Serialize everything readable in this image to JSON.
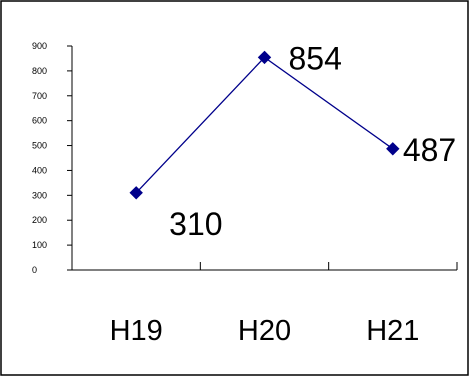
{
  "chart_data": {
    "type": "line",
    "categories": [
      "H19",
      "H20",
      "H21"
    ],
    "series": [
      {
        "values": [
          310,
          854,
          487
        ],
        "color": "#00008b",
        "marker": "diamond"
      }
    ],
    "yticks": [
      "0",
      "100",
      "200",
      "300",
      "400",
      "500",
      "600",
      "700",
      "800",
      "900"
    ],
    "ytick_values": [
      0,
      100,
      200,
      300,
      400,
      500,
      600,
      700,
      800,
      900
    ],
    "data_labels": [
      "310",
      "854",
      "487"
    ],
    "ylim": [
      0,
      900
    ],
    "grid": false,
    "legend": "none",
    "title": "",
    "xlabel": "",
    "ylabel": ""
  }
}
